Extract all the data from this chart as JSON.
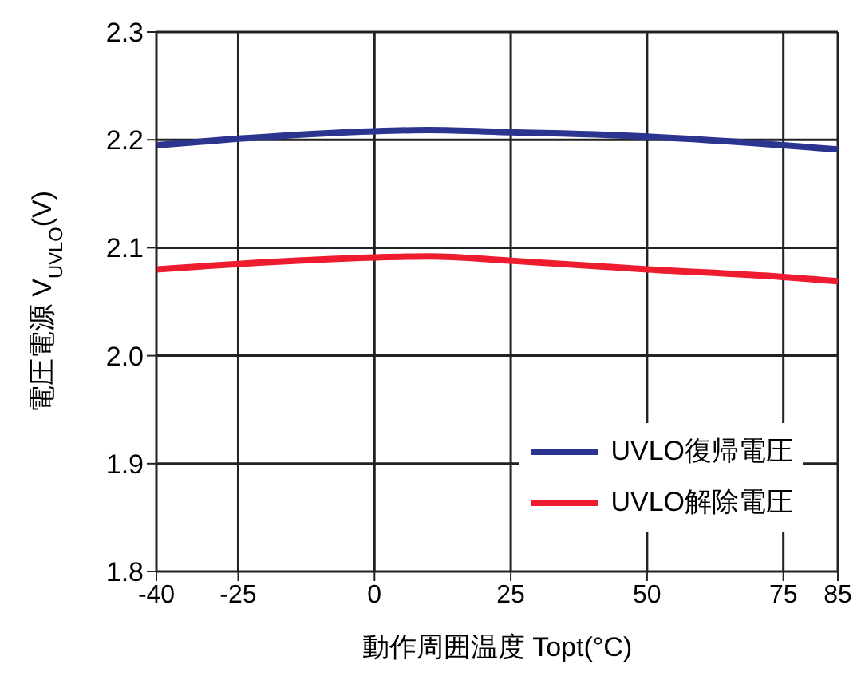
{
  "chart_data": {
    "type": "line",
    "xlabel": "動作周囲温度 Topt(°C)",
    "ylabel": "電圧電源 V$_{UVLO}$(V)",
    "xlim": [
      -40,
      85
    ],
    "xticks": [
      -40,
      -25,
      0,
      25,
      50,
      75,
      85
    ],
    "ylim": [
      1.8,
      2.3
    ],
    "yticks": [
      1.8,
      1.9,
      {
        "value": 2.0,
        "label": "2.0"
      },
      2.1,
      2.2,
      2.3
    ],
    "x": [
      -40,
      -25,
      0,
      10,
      25,
      50,
      75,
      85
    ],
    "series": [
      {
        "name": "UVLO復帰電圧",
        "color": "#2b3590",
        "values": [
          2.195,
          2.201,
          2.208,
          2.209,
          2.207,
          2.203,
          2.195,
          2.191
        ]
      },
      {
        "name": "UVLO解除電圧",
        "color": "#ee1c2e",
        "values": [
          2.08,
          2.085,
          2.091,
          2.092,
          2.088,
          2.08,
          2.073,
          2.069
        ]
      }
    ],
    "grid": true,
    "legend": "bottom right",
    "marker": "none",
    "line_style": "solid"
  }
}
